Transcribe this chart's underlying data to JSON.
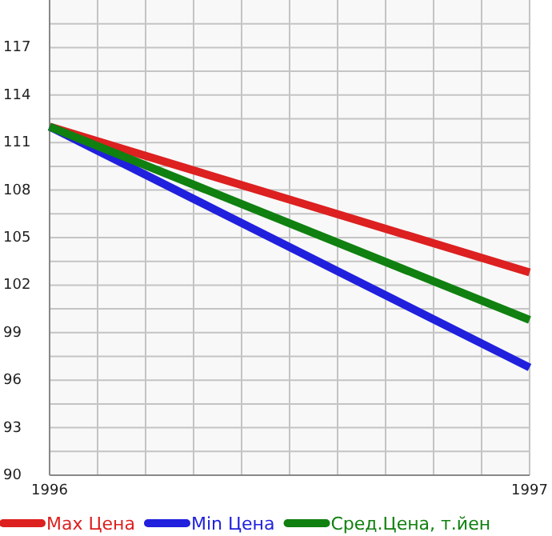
{
  "chart_data": {
    "type": "line",
    "x": [
      1996,
      1997
    ],
    "series": [
      {
        "name": "Max Цена",
        "color": "#dd2020",
        "values": [
          112,
          102.8
        ]
      },
      {
        "name": "Min Цена",
        "color": "#2020dd",
        "values": [
          112,
          96.8
        ]
      },
      {
        "name": "Сред.Цена, т.йен",
        "color": "#108010",
        "values": [
          112,
          99.8
        ]
      }
    ],
    "xlim": [
      1996,
      1997
    ],
    "ylim": [
      90,
      120
    ],
    "xticks": [
      1996,
      {
        "value": 1996.1,
        "label": null
      },
      {
        "value": 1996.2,
        "label": null
      },
      {
        "value": 1996.3,
        "label": null
      },
      {
        "value": 1996.4,
        "label": null
      },
      {
        "value": 1996.5,
        "label": null
      },
      {
        "value": 1996.6,
        "label": null
      },
      {
        "value": 1996.7,
        "label": null
      },
      {
        "value": 1996.8,
        "label": null
      },
      {
        "value": 1996.9,
        "label": null
      },
      1997
    ],
    "yticks": [
      90,
      {
        "value": 91.5,
        "label": null
      },
      93,
      {
        "value": 94.5,
        "label": null
      },
      96,
      {
        "value": 97.5,
        "label": null
      },
      99,
      {
        "value": 100.5,
        "label": null
      },
      102,
      {
        "value": 103.5,
        "label": null
      },
      105,
      {
        "value": 106.5,
        "label": null
      },
      108,
      {
        "value": 109.5,
        "label": null
      },
      111,
      {
        "value": 112.5,
        "label": null
      },
      114,
      {
        "value": 115.5,
        "label": null
      },
      117,
      {
        "value": 118.5,
        "label": null
      }
    ],
    "grid": true,
    "legend": "bottom",
    "marker": "none",
    "line_style": "solid"
  }
}
